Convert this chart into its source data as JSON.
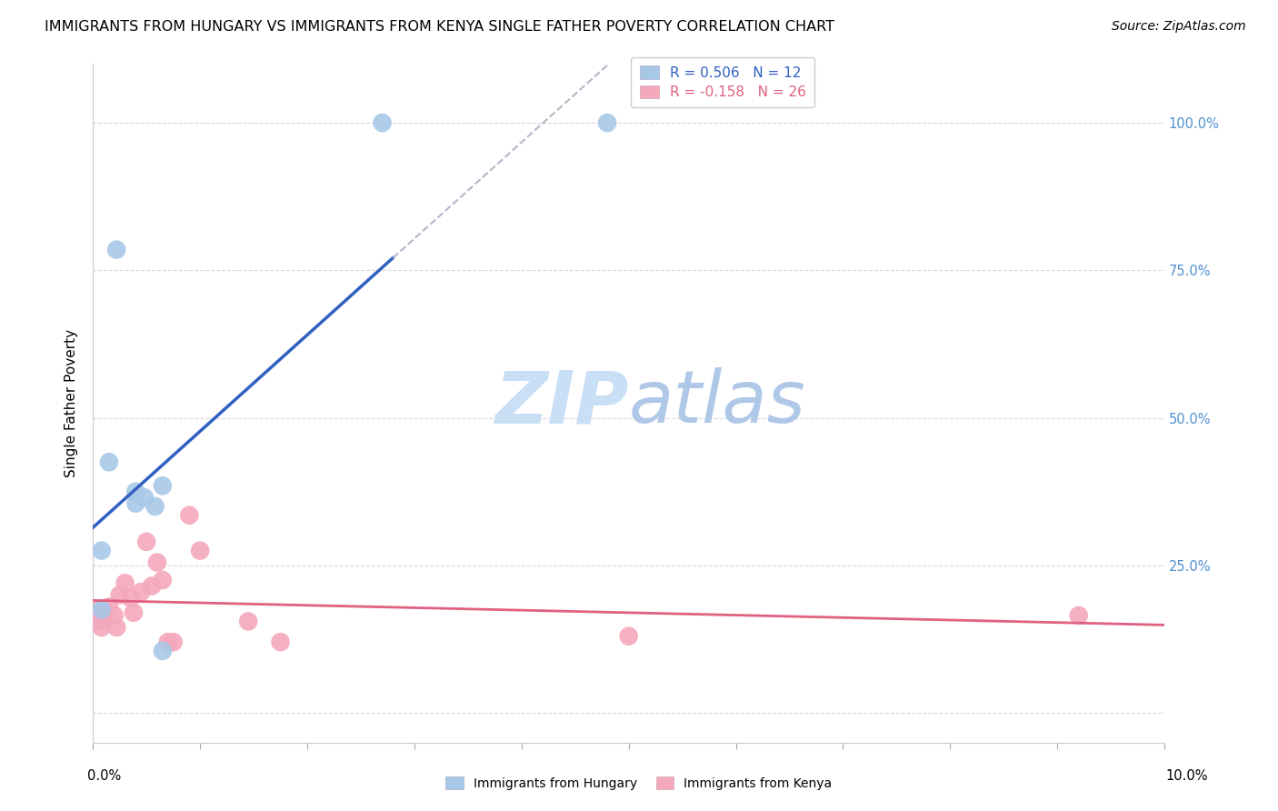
{
  "title": "IMMIGRANTS FROM HUNGARY VS IMMIGRANTS FROM KENYA SINGLE FATHER POVERTY CORRELATION CHART",
  "source": "Source: ZipAtlas.com",
  "ylabel": "Single Father Poverty",
  "xlim": [
    0.0,
    0.1
  ],
  "ylim": [
    -0.05,
    1.1
  ],
  "ytick_values": [
    0.0,
    0.25,
    0.5,
    0.75,
    1.0
  ],
  "right_ytick_labels": [
    "25.0%",
    "50.0%",
    "75.0%",
    "100.0%"
  ],
  "hungary_color": "#a8c8e8",
  "kenya_color": "#f4a8bc",
  "hungary_line_color": "#3060c0",
  "kenya_line_color": "#e06080",
  "watermark_zip_color": "#c8dff5",
  "watermark_atlas_color": "#b0c8e8",
  "right_tick_color": "#5090d0",
  "background_color": "#ffffff",
  "grid_color": "#d8d8e0",
  "hungary_points": [
    [
      0.0008,
      0.175
    ],
    [
      0.0008,
      0.275
    ],
    [
      0.0015,
      0.425
    ],
    [
      0.0022,
      0.785
    ],
    [
      0.004,
      0.355
    ],
    [
      0.004,
      0.375
    ],
    [
      0.0058,
      0.35
    ],
    [
      0.0065,
      0.385
    ],
    [
      0.0065,
      0.105
    ],
    [
      0.027,
      1.0
    ],
    [
      0.048,
      1.0
    ],
    [
      0.0048,
      0.365
    ]
  ],
  "kenya_points": [
    [
      0.0005,
      0.175
    ],
    [
      0.0005,
      0.16
    ],
    [
      0.0008,
      0.155
    ],
    [
      0.0008,
      0.145
    ],
    [
      0.001,
      0.16
    ],
    [
      0.0012,
      0.17
    ],
    [
      0.0015,
      0.18
    ],
    [
      0.002,
      0.165
    ],
    [
      0.0022,
      0.145
    ],
    [
      0.0025,
      0.2
    ],
    [
      0.003,
      0.22
    ],
    [
      0.0035,
      0.195
    ],
    [
      0.0038,
      0.17
    ],
    [
      0.0045,
      0.205
    ],
    [
      0.005,
      0.29
    ],
    [
      0.0055,
      0.215
    ],
    [
      0.006,
      0.255
    ],
    [
      0.0065,
      0.225
    ],
    [
      0.007,
      0.12
    ],
    [
      0.0075,
      0.12
    ],
    [
      0.009,
      0.335
    ],
    [
      0.01,
      0.275
    ],
    [
      0.0145,
      0.155
    ],
    [
      0.0175,
      0.12
    ],
    [
      0.05,
      0.13
    ],
    [
      0.092,
      0.165
    ]
  ],
  "title_fontsize": 11.5,
  "source_fontsize": 10,
  "ylabel_fontsize": 11,
  "tick_fontsize": 10.5,
  "legend_fontsize": 11,
  "watermark_fontsize": 58
}
